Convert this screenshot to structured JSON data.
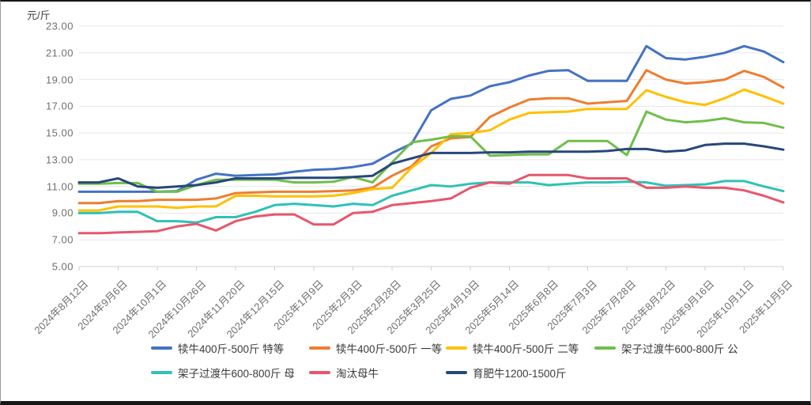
{
  "unit_label": "元/斤",
  "chart_data": {
    "type": "line",
    "title": "",
    "ylabel": "元/斤",
    "ylim": [
      5,
      23
    ],
    "grid": true,
    "legend_position": "bottom",
    "y_tick_labels": [
      "23.00",
      "21.00",
      "19.00",
      "17.00",
      "15.00",
      "13.00",
      "11.00",
      "9.00",
      "7.00",
      "5.00"
    ],
    "x_tick_labels": [
      "2024年8月12日",
      "2024年9月6日",
      "2024年10月1日",
      "2024年10月26日",
      "2024年11月20日",
      "2024年12月15日",
      "2025年1月9日",
      "2025年2月3日",
      "2025年2月28日",
      "2025年3月25日",
      "2025年4月19日",
      "2025年5月14日",
      "2025年6月8日",
      "2025年7月3日",
      "2025年7月28日",
      "2025年8月22日",
      "2025年9月16日",
      "2025年10月11日",
      "2025年11月5日"
    ],
    "samples_per_tick_interval": 2,
    "series": [
      {
        "name": "犊牛400斤-500斤 特等",
        "color": "#4472C4",
        "values": [
          10.6,
          10.6,
          10.6,
          10.6,
          10.6,
          10.65,
          11.5,
          11.95,
          11.8,
          11.85,
          11.9,
          12.1,
          12.25,
          12.3,
          12.45,
          12.7,
          13.5,
          14.2,
          16.7,
          17.55,
          17.8,
          18.5,
          18.8,
          19.3,
          19.65,
          19.7,
          18.9,
          18.9,
          18.9,
          21.5,
          20.6,
          20.5,
          20.7,
          21.0,
          21.5,
          21.1,
          20.3
        ]
      },
      {
        "name": "犊牛400斤-500斤 一等",
        "color": "#ED7D31",
        "values": [
          9.75,
          9.75,
          9.9,
          9.9,
          10.0,
          10.0,
          10.0,
          10.1,
          10.5,
          10.55,
          10.6,
          10.6,
          10.6,
          10.65,
          10.7,
          10.9,
          11.8,
          12.5,
          14.0,
          14.6,
          14.7,
          16.2,
          16.9,
          17.5,
          17.6,
          17.6,
          17.2,
          17.3,
          17.4,
          19.7,
          19.0,
          18.7,
          18.8,
          19.0,
          19.65,
          19.2,
          18.4
        ]
      },
      {
        "name": "犊牛400斤-500斤 二等",
        "color": "#FFC000",
        "values": [
          9.2,
          9.2,
          9.5,
          9.5,
          9.5,
          9.4,
          9.5,
          9.5,
          10.3,
          10.3,
          10.25,
          10.25,
          10.25,
          10.3,
          10.5,
          10.8,
          10.9,
          12.4,
          13.5,
          14.9,
          15.0,
          15.2,
          16.0,
          16.5,
          16.55,
          16.6,
          16.8,
          16.8,
          16.8,
          18.2,
          17.7,
          17.3,
          17.1,
          17.6,
          18.25,
          17.75,
          17.2
        ]
      },
      {
        "name": "架子过渡牛600-800斤 公",
        "color": "#70BE4A",
        "values": [
          11.2,
          11.2,
          11.25,
          11.25,
          10.6,
          10.6,
          11.1,
          11.5,
          11.5,
          11.5,
          11.5,
          11.3,
          11.3,
          11.35,
          11.7,
          11.3,
          12.8,
          14.3,
          14.5,
          14.75,
          14.75,
          13.3,
          13.35,
          13.4,
          13.4,
          14.4,
          14.4,
          14.4,
          13.35,
          16.6,
          16.0,
          15.8,
          15.9,
          16.1,
          15.8,
          15.75,
          15.4
        ]
      },
      {
        "name": "架子过渡牛600-800斤 母",
        "color": "#30C1B6",
        "values": [
          9.0,
          9.0,
          9.1,
          9.1,
          8.4,
          8.4,
          8.3,
          8.7,
          8.7,
          9.1,
          9.6,
          9.7,
          9.6,
          9.5,
          9.7,
          9.6,
          10.3,
          10.7,
          11.1,
          11.0,
          11.2,
          11.3,
          11.3,
          11.3,
          11.1,
          11.2,
          11.3,
          11.3,
          11.35,
          11.3,
          11.05,
          11.1,
          11.15,
          11.4,
          11.4,
          11.0,
          10.65
        ]
      },
      {
        "name": "淘汰母牛",
        "color": "#E8566B",
        "values": [
          7.5,
          7.5,
          7.55,
          7.6,
          7.65,
          8.0,
          8.2,
          7.7,
          8.4,
          8.75,
          8.9,
          8.9,
          8.15,
          8.15,
          9.0,
          9.1,
          9.6,
          9.75,
          9.9,
          10.1,
          10.9,
          11.3,
          11.2,
          11.85,
          11.85,
          11.85,
          11.6,
          11.6,
          11.6,
          10.9,
          10.9,
          11.0,
          10.9,
          10.9,
          10.7,
          10.3,
          9.8
        ]
      },
      {
        "name": "育肥牛1200-1500斤",
        "color": "#27477A",
        "values": [
          11.3,
          11.3,
          11.6,
          11.0,
          10.9,
          11.0,
          11.1,
          11.3,
          11.6,
          11.6,
          11.6,
          11.65,
          11.65,
          11.65,
          11.7,
          11.8,
          12.7,
          13.1,
          13.5,
          13.5,
          13.5,
          13.55,
          13.55,
          13.6,
          13.6,
          13.6,
          13.6,
          13.65,
          13.8,
          13.8,
          13.6,
          13.7,
          14.1,
          14.2,
          14.2,
          14.0,
          13.75
        ]
      }
    ],
    "legend_order": [
      0,
      1,
      2,
      3,
      4,
      5,
      6
    ]
  }
}
